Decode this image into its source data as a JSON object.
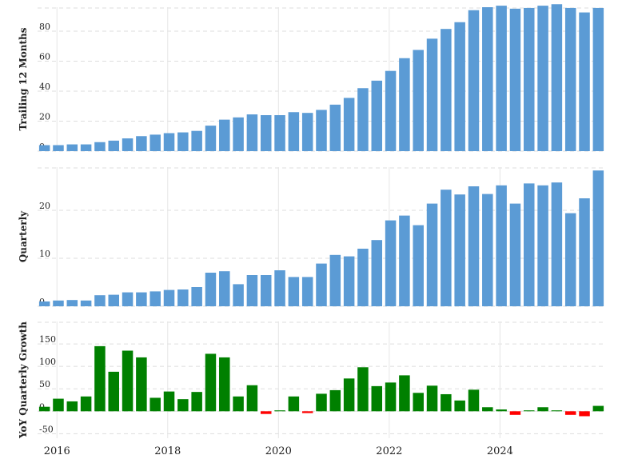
{
  "chart_data": [
    {
      "type": "bar",
      "ylabel": "Trailing 12 Months",
      "ylim": [
        0,
        96
      ],
      "yticks": [
        0,
        20,
        40,
        60,
        80
      ],
      "color": "#5b9bd5",
      "grid": true,
      "values": [
        4.0,
        4.0,
        4.5,
        4.5,
        6.0,
        7.0,
        8.5,
        10.0,
        11.0,
        12.0,
        12.5,
        13.5,
        17.0,
        21.0,
        22.5,
        24.5,
        24.0,
        24.0,
        26.0,
        25.5,
        27.5,
        31.0,
        35.5,
        42.0,
        47.0,
        53.5,
        62.0,
        67.5,
        75.0,
        81.5,
        86.0,
        94.0,
        96.0,
        97.0,
        95.0,
        95.5,
        97.0,
        98.0,
        95.5,
        92.5,
        95.5
      ]
    },
    {
      "type": "bar",
      "ylabel": "Quarterly",
      "ylim": [
        0,
        29
      ],
      "yticks": [
        0,
        10,
        20
      ],
      "color": "#5b9bd5",
      "grid": true,
      "values": [
        1.0,
        1.2,
        1.3,
        1.2,
        2.3,
        2.4,
        2.9,
        2.9,
        3.1,
        3.4,
        3.5,
        4.0,
        7.0,
        7.3,
        4.6,
        6.5,
        6.5,
        7.5,
        6.1,
        6.1,
        8.9,
        10.7,
        10.4,
        12.0,
        13.8,
        17.9,
        18.9,
        16.9,
        21.4,
        24.3,
        23.3,
        25.0,
        23.4,
        25.2,
        21.4,
        25.6,
        25.2,
        25.8,
        19.4,
        22.5,
        28.3
      ]
    },
    {
      "type": "bar",
      "ylabel": "YoY Quarterly Growth",
      "ylim": [
        -60,
        200
      ],
      "yticks": [
        -50,
        0,
        50,
        100,
        150
      ],
      "pos_color": "#008000",
      "neg_color": "#ff0000",
      "grid": true,
      "xticks": [
        "2016",
        "2018",
        "2020",
        "2022",
        "2024"
      ],
      "values": [
        10,
        28,
        22,
        33,
        145,
        88,
        135,
        120,
        30,
        44,
        27,
        43,
        128,
        120,
        33,
        58,
        -6,
        2,
        33,
        -4,
        39,
        47,
        73,
        98,
        56,
        64,
        80,
        41,
        57,
        38,
        24,
        48,
        9,
        4,
        -8,
        2,
        9,
        2,
        -8,
        -11,
        12
      ]
    }
  ]
}
